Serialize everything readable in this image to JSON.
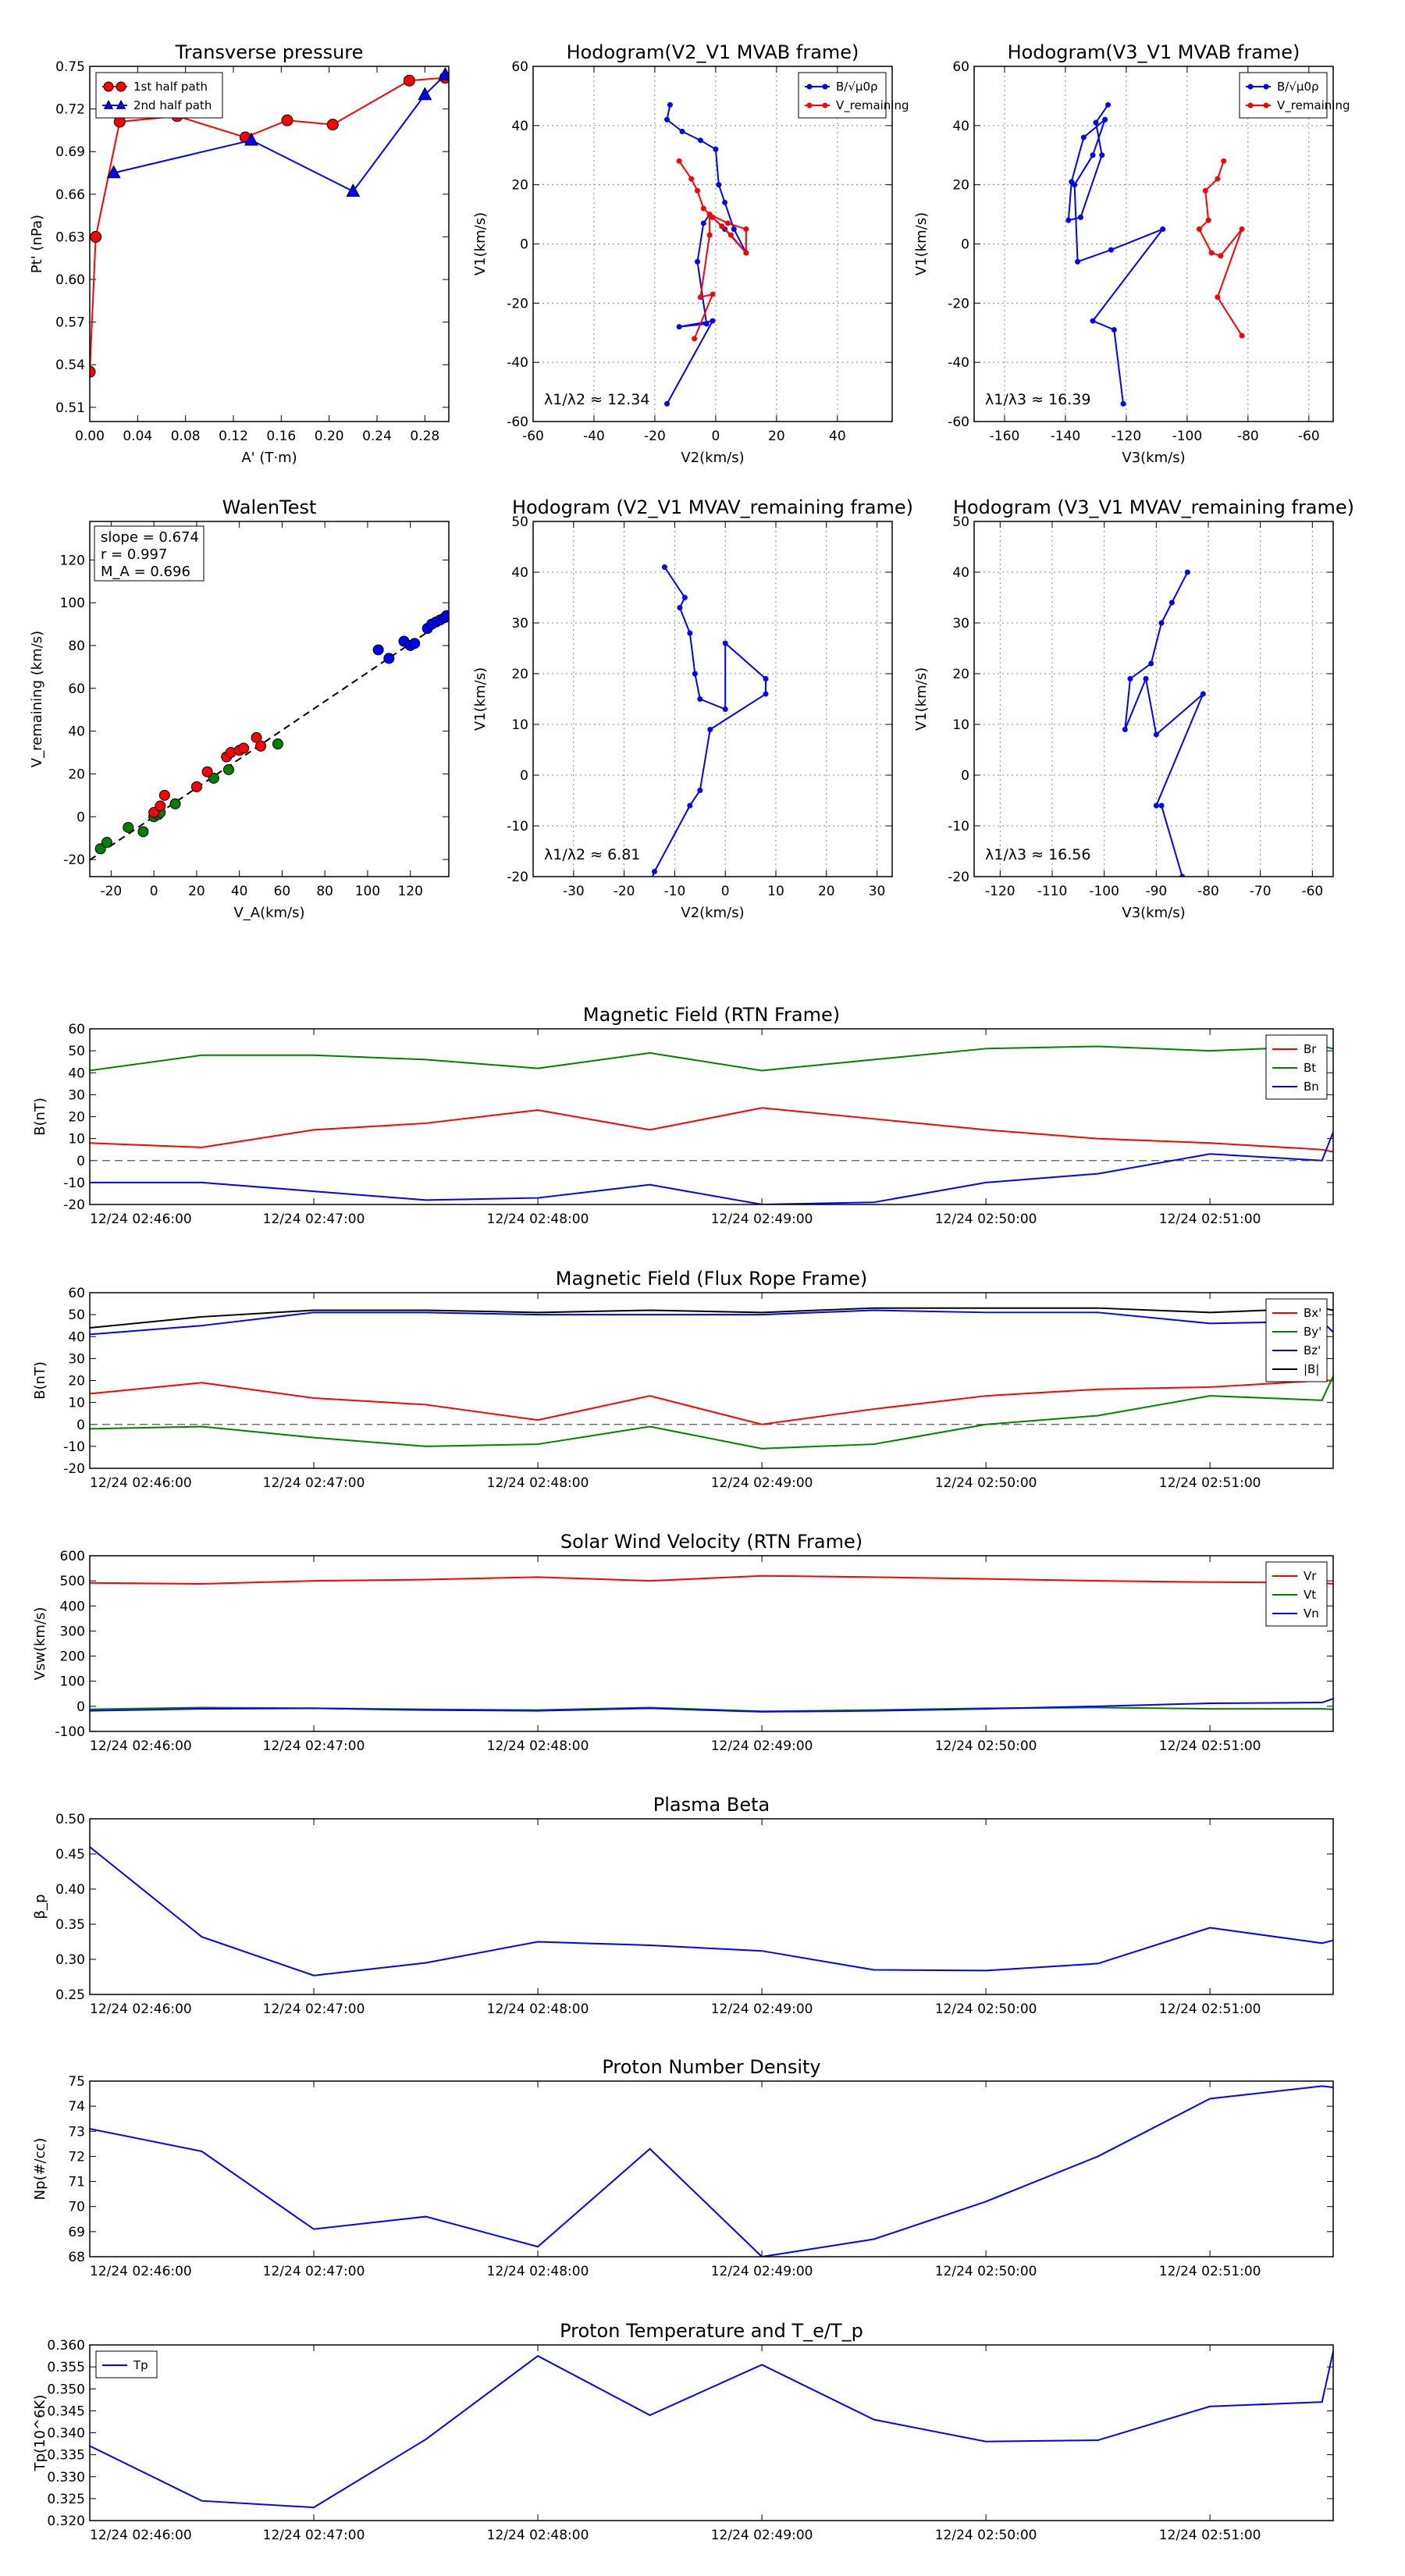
{
  "figure": {
    "time_ticks": [
      "12/24 02:46:00",
      "12/24 02:47:00",
      "12/24 02:48:00",
      "12/24 02:49:00",
      "12/24 02:50:00",
      "12/24 02:51:00"
    ]
  },
  "chart_data": [
    {
      "id": "transverse-pressure",
      "type": "line",
      "title": "Transverse pressure",
      "xlabel": "A' (T·m)",
      "ylabel": "Pt' (nPa)",
      "xlim": [
        0,
        0.3
      ],
      "ylim": [
        0.5,
        0.75
      ],
      "xticks": [
        0,
        0.04,
        0.08,
        0.12,
        0.16,
        0.2,
        0.24,
        0.28
      ],
      "xtick_labels": [
        "0.00",
        "0.04",
        "0.08",
        "0.12",
        "0.16",
        "0.20",
        "0.24",
        "0.28"
      ],
      "yticks": [
        0.51,
        0.54,
        0.57,
        0.6,
        0.63,
        0.66,
        0.69,
        0.72,
        0.75
      ],
      "ytick_labels": [
        "0.51",
        "0.54",
        "0.57",
        "0.60",
        "0.63",
        "0.66",
        "0.69",
        "0.72",
        "0.75"
      ],
      "legend": "top-left",
      "series": [
        {
          "name": "1st half path",
          "color": "#ff0000",
          "marker": "circle",
          "x": [
            0.0,
            0.005,
            0.025,
            0.073,
            0.13,
            0.165,
            0.203,
            0.267,
            0.297
          ],
          "y": [
            0.535,
            0.63,
            0.711,
            0.715,
            0.7,
            0.712,
            0.709,
            0.74,
            0.742
          ]
        },
        {
          "name": "2nd half path",
          "color": "#0000ff",
          "marker": "triangle",
          "x": [
            0.02,
            0.135,
            0.22,
            0.28,
            0.297
          ],
          "y": [
            0.675,
            0.698,
            0.662,
            0.73,
            0.744
          ]
        }
      ]
    },
    {
      "id": "hodogram-v2v1-mvab",
      "type": "line",
      "title": "Hodogram(V2_V1 MVAB frame)",
      "xlabel": "V2(km/s)",
      "ylabel": "V1(km/s)",
      "xlim": [
        -60,
        58
      ],
      "ylim": [
        -60,
        60
      ],
      "xticks": [
        -60,
        -40,
        -20,
        0,
        20,
        40
      ],
      "yticks": [
        -60,
        -40,
        -20,
        0,
        20,
        40,
        60
      ],
      "annotation": "λ1/λ2 ≈ 12.34",
      "legend": "top-right",
      "series": [
        {
          "name": "B/√μ0ρ",
          "color": "#0000ff",
          "x": [
            -15,
            -16,
            -11,
            -5,
            0,
            1,
            3,
            6,
            10,
            3,
            -2,
            -4,
            -6,
            -3,
            -12,
            -1,
            -16
          ],
          "y": [
            47,
            42,
            38,
            35,
            32,
            20,
            14,
            5,
            -3,
            5,
            10,
            7,
            -6,
            -27,
            -28,
            -26,
            -54
          ]
        },
        {
          "name": "V_remaining",
          "color": "#ff0000",
          "x": [
            -12,
            -8,
            -6,
            -4,
            -1,
            2,
            5,
            10,
            10,
            4,
            -2,
            -2,
            -5,
            -1,
            -7
          ],
          "y": [
            28,
            22,
            18,
            12,
            9,
            6,
            3,
            -3,
            5,
            7,
            10,
            3,
            -18,
            -17,
            -32
          ]
        }
      ]
    },
    {
      "id": "hodogram-v3v1-mvab",
      "type": "line",
      "title": "Hodogram(V3_V1 MVAB frame)",
      "xlabel": "V3(km/s)",
      "ylabel": "V1(km/s)",
      "xlim": [
        -170,
        -52
      ],
      "ylim": [
        -60,
        60
      ],
      "xticks": [
        -160,
        -140,
        -120,
        -100,
        -80,
        -60
      ],
      "yticks": [
        -60,
        -40,
        -20,
        0,
        20,
        40,
        60
      ],
      "annotation": "λ1/λ3 ≈ 16.39",
      "legend": "top-right",
      "series": [
        {
          "name": "B/√μ0ρ",
          "color": "#0000ff",
          "x": [
            -126,
            -130,
            -128,
            -135,
            -139,
            -138,
            -134,
            -127,
            -131,
            -137,
            -136,
            -125,
            -108,
            -131,
            -124,
            -121
          ],
          "y": [
            47,
            41,
            30,
            9,
            8,
            21,
            36,
            42,
            30,
            20,
            -6,
            -2,
            5,
            -26,
            -29,
            -54
          ]
        },
        {
          "name": "V_remaining",
          "color": "#ff0000",
          "x": [
            -88,
            -90,
            -94,
            -93,
            -96,
            -92,
            -89,
            -82,
            -90,
            -82
          ],
          "y": [
            28,
            22,
            18,
            8,
            5,
            -3,
            -4,
            5,
            -18,
            -31
          ]
        }
      ]
    },
    {
      "id": "walen-test",
      "type": "scatter",
      "title": "WalenTest",
      "xlabel": "V_A(km/s)",
      "ylabel": "V_remaining (km/s)",
      "xlim": [
        -30,
        138
      ],
      "ylim": [
        -28,
        138
      ],
      "xticks": [
        -20,
        0,
        20,
        40,
        60,
        80,
        100,
        120
      ],
      "yticks": [
        -20,
        0,
        20,
        40,
        60,
        80,
        100,
        120
      ],
      "stats": {
        "slope": "slope = 0.674",
        "r": "r = 0.997",
        "ma": "M_A = 0.696"
      },
      "fit_line": {
        "slope": 0.674,
        "intercept": 0,
        "color": "#000000"
      },
      "series": [
        {
          "name": "green",
          "color": "#008000",
          "x": [
            -25,
            -22,
            -12,
            -5,
            0,
            2,
            3,
            10,
            28,
            35,
            58
          ],
          "y": [
            -15,
            -12,
            -5,
            -7,
            0,
            1,
            2,
            6,
            18,
            22,
            34
          ]
        },
        {
          "name": "red",
          "color": "#ff0000",
          "x": [
            0,
            3,
            5,
            20,
            25,
            34,
            36,
            40,
            42,
            48,
            50
          ],
          "y": [
            2,
            5,
            10,
            14,
            21,
            28,
            30,
            31,
            32,
            37,
            33
          ]
        },
        {
          "name": "blue",
          "color": "#0000ff",
          "x": [
            105,
            110,
            117,
            120,
            122,
            128,
            130,
            132,
            134,
            136,
            137
          ],
          "y": [
            78,
            74,
            82,
            80,
            81,
            88,
            90,
            91,
            92,
            93,
            94
          ]
        }
      ]
    },
    {
      "id": "hodogram-v2v1-mvav",
      "type": "line",
      "title": "Hodogram (V2_V1 MVAV_remaining frame)",
      "xlabel": "V2(km/s)",
      "ylabel": "V1(km/s)",
      "xlim": [
        -38,
        33
      ],
      "ylim": [
        -20,
        50
      ],
      "xticks": [
        -30,
        -20,
        -10,
        0,
        10,
        20,
        30
      ],
      "yticks": [
        -20,
        -10,
        0,
        10,
        20,
        30,
        40,
        50
      ],
      "annotation": "λ1/λ2 ≈ 6.81",
      "series": [
        {
          "name": "hodogram",
          "color": "#0000ff",
          "x": [
            -12,
            -8,
            -9,
            -7,
            -6,
            -5,
            0,
            0,
            8,
            8,
            -3,
            -5,
            -7,
            -14,
            -16
          ],
          "y": [
            41,
            35,
            33,
            28,
            20,
            15,
            13,
            26,
            19,
            16,
            9,
            -3,
            -6,
            -19,
            -24
          ]
        }
      ]
    },
    {
      "id": "hodogram-v3v1-mvav",
      "type": "line",
      "title": "Hodogram (V3_V1 MVAV_remaining frame)",
      "xlabel": "V3(km/s)",
      "ylabel": "V1(km/s)",
      "xlim": [
        -125,
        -56
      ],
      "ylim": [
        -20,
        50
      ],
      "xticks": [
        -120,
        -110,
        -100,
        -90,
        -80,
        -70,
        -60
      ],
      "yticks": [
        -20,
        -10,
        0,
        10,
        20,
        30,
        40,
        50
      ],
      "annotation": "λ1/λ3 ≈ 16.56",
      "series": [
        {
          "name": "hodogram",
          "color": "#0000ff",
          "x": [
            -84,
            -87,
            -89,
            -91,
            -95,
            -96,
            -92,
            -90,
            -81,
            -90,
            -89,
            -85
          ],
          "y": [
            40,
            34,
            30,
            22,
            19,
            9,
            19,
            8,
            16,
            -6,
            -6,
            -20
          ]
        }
      ]
    },
    {
      "id": "magnetic-field-rtn",
      "type": "line",
      "title": "Magnetic Field (RTN Frame)",
      "xlabel": "",
      "ylabel": "B(nT)",
      "ylim": [
        -20,
        60
      ],
      "yticks": [
        -20,
        -10,
        0,
        10,
        20,
        30,
        40,
        50,
        60
      ],
      "zero_line": true,
      "legend": "top-right",
      "x_minutes": [
        0,
        0.5,
        1,
        1.5,
        2,
        2.5,
        3,
        3.5,
        4,
        4.5,
        5,
        5.5
      ],
      "series": [
        {
          "name": "Br",
          "color": "#ff0000",
          "values": [
            8,
            6,
            14,
            17,
            23,
            14,
            24,
            19,
            14,
            10,
            8,
            5
          ]
        },
        {
          "name": "Bt",
          "color": "#008000",
          "values": [
            41,
            48,
            48,
            46,
            42,
            49,
            41,
            46,
            51,
            52,
            50,
            52
          ]
        },
        {
          "name": "Bn",
          "color": "#0000ff",
          "values": [
            -10,
            -10,
            -14,
            -18,
            -17,
            -11,
            -20,
            -19,
            -10,
            -6,
            3,
            0
          ]
        }
      ],
      "end_values": [
        4,
        51,
        13
      ]
    },
    {
      "id": "magnetic-field-flux-rope",
      "type": "line",
      "title": "Magnetic Field (Flux Rope Frame)",
      "xlabel": "",
      "ylabel": "B(nT)",
      "ylim": [
        -20,
        60
      ],
      "yticks": [
        -20,
        -10,
        0,
        10,
        20,
        30,
        40,
        50,
        60
      ],
      "zero_line": true,
      "legend": "top-right",
      "x_minutes": [
        0,
        0.5,
        1,
        1.5,
        2,
        2.5,
        3,
        3.5,
        4,
        4.5,
        5,
        5.5
      ],
      "series": [
        {
          "name": "Bx'",
          "color": "#ff0000",
          "values": [
            14,
            19,
            12,
            9,
            2,
            13,
            0,
            7,
            13,
            16,
            17,
            20
          ]
        },
        {
          "name": "By'",
          "color": "#008000",
          "values": [
            -2,
            -1,
            -6,
            -10,
            -9,
            -1,
            -11,
            -9,
            0,
            4,
            13,
            11
          ]
        },
        {
          "name": "Bz'",
          "color": "#0000ff",
          "values": [
            41,
            45,
            51,
            51,
            50,
            50,
            50,
            52,
            51,
            51,
            46,
            47
          ]
        },
        {
          "name": "|B|",
          "color": "#000000",
          "values": [
            44,
            49,
            52,
            52,
            51,
            52,
            51,
            53,
            53,
            53,
            51,
            53
          ]
        }
      ],
      "end_values": [
        20,
        22,
        42,
        52
      ]
    },
    {
      "id": "solar-wind-velocity",
      "type": "line",
      "title": "Solar Wind Velocity (RTN Frame)",
      "xlabel": "",
      "ylabel": "Vsw(km/s)",
      "ylim": [
        -100,
        600
      ],
      "yticks": [
        -100,
        0,
        100,
        200,
        300,
        400,
        500,
        600
      ],
      "legend": "top-right",
      "x_minutes": [
        0,
        0.5,
        1,
        1.5,
        2,
        2.5,
        3,
        3.5,
        4,
        4.5,
        5,
        5.5
      ],
      "series": [
        {
          "name": "Vr",
          "color": "#ff0000",
          "values": [
            492,
            488,
            500,
            505,
            515,
            500,
            520,
            515,
            508,
            500,
            495,
            492
          ]
        },
        {
          "name": "Vt",
          "color": "#008000",
          "values": [
            -12,
            -5,
            -8,
            -12,
            -15,
            -5,
            -20,
            -15,
            -8,
            -5,
            -10,
            -10
          ]
        },
        {
          "name": "Vn",
          "color": "#0000ff",
          "values": [
            -18,
            -10,
            -8,
            -15,
            -18,
            -8,
            -22,
            -18,
            -10,
            0,
            12,
            15
          ]
        }
      ],
      "end_values": [
        488,
        -12,
        30
      ]
    },
    {
      "id": "plasma-beta",
      "type": "line",
      "title": "Plasma Beta",
      "xlabel": "",
      "ylabel": "β_p",
      "ylim": [
        0.25,
        0.5
      ],
      "yticks": [
        0.25,
        0.3,
        0.35,
        0.4,
        0.45,
        0.5
      ],
      "ytick_labels": [
        "0.25",
        "0.30",
        "0.35",
        "0.40",
        "0.45",
        "0.50"
      ],
      "x_minutes": [
        0,
        0.5,
        1,
        1.5,
        2,
        2.5,
        3,
        3.5,
        4,
        4.5,
        5,
        5.5
      ],
      "series": [
        {
          "name": "beta",
          "color": "#0000ff",
          "values": [
            0.46,
            0.332,
            0.277,
            0.295,
            0.325,
            0.32,
            0.312,
            0.285,
            0.284,
            0.294,
            0.345,
            0.323
          ]
        }
      ],
      "end_values": [
        0.327
      ]
    },
    {
      "id": "proton-number-density",
      "type": "line",
      "title": "Proton Number Density",
      "xlabel": "",
      "ylabel": "Np(#/cc)",
      "ylim": [
        68,
        75
      ],
      "yticks": [
        68,
        69,
        70,
        71,
        72,
        73,
        74,
        75
      ],
      "x_minutes": [
        0,
        0.5,
        1,
        1.5,
        2,
        2.5,
        3,
        3.5,
        4,
        4.5,
        5,
        5.5
      ],
      "series": [
        {
          "name": "Np",
          "color": "#0000ff",
          "values": [
            73.1,
            72.2,
            69.1,
            69.6,
            68.4,
            72.3,
            68.0,
            68.7,
            70.2,
            72.0,
            74.3,
            74.8
          ]
        }
      ],
      "end_values": [
        74.75
      ]
    },
    {
      "id": "proton-temperature",
      "type": "line",
      "title": "Proton Temperature and T_e/T_p",
      "xlabel": "",
      "ylabel": "Tp(10^6K)",
      "ylim": [
        0.32,
        0.36
      ],
      "yticks": [
        0.32,
        0.325,
        0.33,
        0.335,
        0.34,
        0.345,
        0.35,
        0.355,
        0.36
      ],
      "ytick_labels": [
        "0.320",
        "0.325",
        "0.330",
        "0.335",
        "0.340",
        "0.345",
        "0.350",
        "0.355",
        "0.360"
      ],
      "legend": "top-left",
      "x_minutes": [
        0,
        0.5,
        1,
        1.5,
        2,
        2.5,
        3,
        3.5,
        4,
        4.5,
        5,
        5.5
      ],
      "series": [
        {
          "name": "Tp",
          "color": "#0000ff",
          "values": [
            0.337,
            0.3245,
            0.323,
            0.3385,
            0.3575,
            0.344,
            0.3555,
            0.343,
            0.338,
            0.3383,
            0.346,
            0.347
          ]
        }
      ],
      "end_values": [
        0.3585
      ]
    }
  ]
}
